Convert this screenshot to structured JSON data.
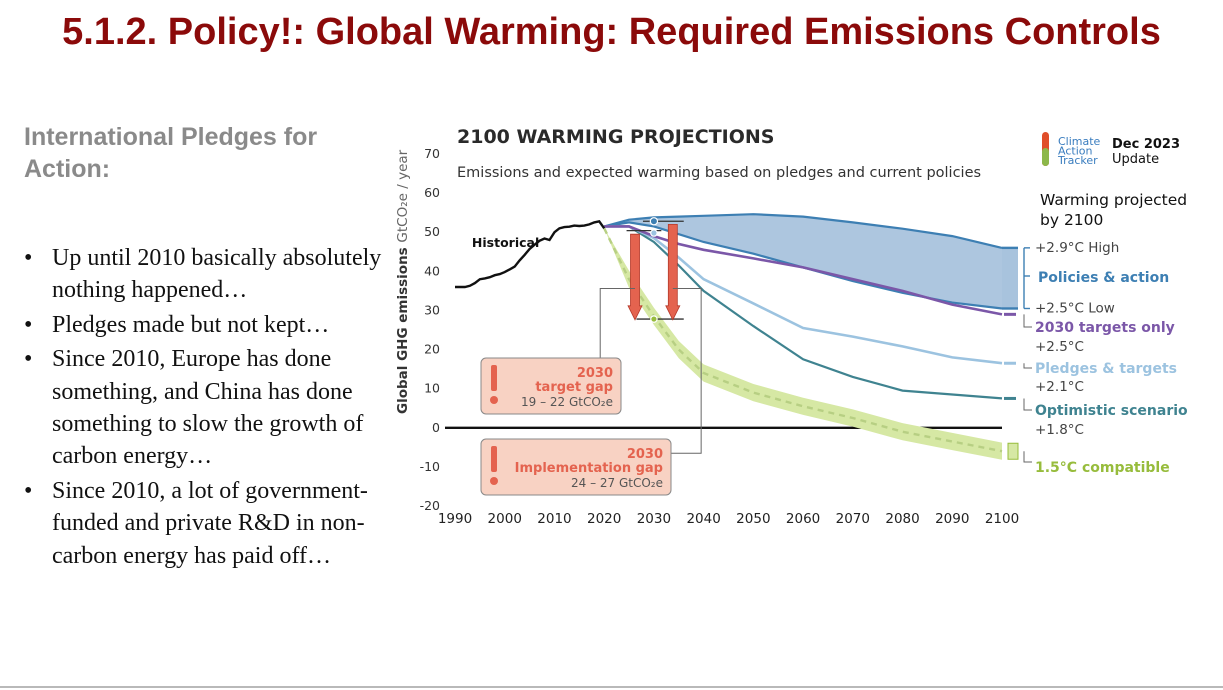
{
  "slide": {
    "title": "5.1.2. Policy!: Global Warming: Required Emissions Controls",
    "subheading": "International Pledges for Action:",
    "bullets": [
      "Up until 2010 basically absolutely nothing happened…",
      "Pledges made but not kept…",
      "Since 2010, Europe has done something, and China has done something to slow the growth of carbon energy…",
      "Since 2010, a lot of government-funded and private R&D in non-carbon energy has paid off…"
    ]
  },
  "chart_data": {
    "type": "line",
    "title": "2100 WARMING PROJECTIONS",
    "subtitle": "Emissions and expected warming based on pledges and current policies",
    "ylabel": "Global GHG emissions",
    "ylabel_unit": "GtCO₂e / year",
    "xlim": [
      1990,
      2100
    ],
    "ylim": [
      -20,
      70
    ],
    "x_ticks": [
      "1990",
      "2000",
      "2010",
      "2020",
      "2030",
      "2040",
      "2050",
      "2060",
      "2070",
      "2080",
      "2090",
      "2100"
    ],
    "y_ticks": [
      "70",
      "60",
      "50",
      "40",
      "30",
      "20",
      "10",
      "0",
      "-10",
      "-20"
    ],
    "grid": false,
    "source_logo": [
      "Climate",
      "Action",
      "Tracker"
    ],
    "update_label": [
      "Dec 2023",
      "Update"
    ],
    "legend_heading": [
      "Warming projected",
      "by 2100"
    ],
    "colors": {
      "historical": "#111111",
      "policies": "#3d7fb3",
      "policies_fill": "#9fbcd9",
      "targets_only": "#7b57a8",
      "pledges": "#9cc3e0",
      "optimistic": "#3f8390",
      "compatible": "#97bc3c",
      "compatible_band": "#d6e8a4",
      "gap": "#e4634f",
      "gap_box": "#f8d2c3"
    },
    "historical": {
      "name": "Historical",
      "x": [
        1990,
        1992,
        1993,
        1994,
        1995,
        1996,
        1997,
        1998,
        1999,
        2000,
        2001,
        2002,
        2003,
        2004,
        2005,
        2006,
        2007,
        2008,
        2009,
        2010,
        2011,
        2012,
        2013,
        2014,
        2015,
        2016,
        2017,
        2018,
        2019,
        2020
      ],
      "y": [
        36,
        36,
        36.3,
        37,
        38,
        38.2,
        38.5,
        39,
        39.3,
        39.8,
        40.5,
        41.2,
        42.8,
        44.2,
        45.7,
        46.8,
        47.8,
        48.4,
        48.0,
        50.0,
        51.0,
        51.3,
        51.4,
        51.7,
        51.6,
        51.7,
        52.0,
        52.5,
        52.8,
        51.0
      ]
    },
    "series": [
      {
        "name": "Policies & action",
        "x": [
          2020,
          2025,
          2030,
          2035,
          2040,
          2050,
          2060,
          2070,
          2080,
          2090,
          2100
        ],
        "high": [
          51.5,
          53.2,
          53.8,
          54.0,
          54.2,
          54.6,
          54.0,
          52.5,
          50.9,
          49.0,
          46.0
        ],
        "low": [
          51.5,
          52.5,
          51.5,
          49.5,
          47.5,
          44.5,
          41.0,
          37.5,
          34.5,
          32.0,
          30.5
        ],
        "label_high": "+2.9°C High",
        "label_low": "+2.5°C Low"
      },
      {
        "name": "2030 targets only",
        "warming": "+2.5°C",
        "x": [
          2020,
          2025,
          2030,
          2035,
          2040,
          2050,
          2060,
          2070,
          2080,
          2090,
          2100
        ],
        "y": [
          51.5,
          51.5,
          49.0,
          47.0,
          45.5,
          43.3,
          41.0,
          38.0,
          35.0,
          31.5,
          29.0
        ]
      },
      {
        "name": "Pledges & targets",
        "warming": "+2.1°C",
        "x": [
          2020,
          2025,
          2030,
          2035,
          2040,
          2050,
          2060,
          2070,
          2080,
          2090,
          2100
        ],
        "y": [
          51.5,
          51.5,
          48.5,
          43.5,
          38.0,
          31.8,
          25.5,
          23.3,
          20.8,
          18.0,
          16.5
        ]
      },
      {
        "name": "Optimistic scenario",
        "warming": "+1.8°C",
        "x": [
          2020,
          2025,
          2030,
          2035,
          2040,
          2050,
          2060,
          2070,
          2080,
          2090,
          2100
        ],
        "y": [
          51.5,
          51.5,
          47.5,
          41.5,
          35.0,
          26.0,
          17.5,
          13.0,
          9.5,
          8.5,
          7.5
        ]
      },
      {
        "name": "1.5°C compatible",
        "x": [
          2020,
          2025,
          2030,
          2035,
          2040,
          2050,
          2060,
          2070,
          2080,
          2090,
          2100
        ],
        "y": [
          51.0,
          38.0,
          28.5,
          20.0,
          14.0,
          9.0,
          5.5,
          2.5,
          -1.0,
          -3.5,
          -6.0
        ]
      }
    ],
    "gaps": [
      {
        "label_year": "2030",
        "label": "target gap",
        "range": "19 – 22  GtCO₂e"
      },
      {
        "label_year": "2030",
        "label": "Implementation gap",
        "range": "24 – 27  GtCO₂e"
      }
    ]
  }
}
